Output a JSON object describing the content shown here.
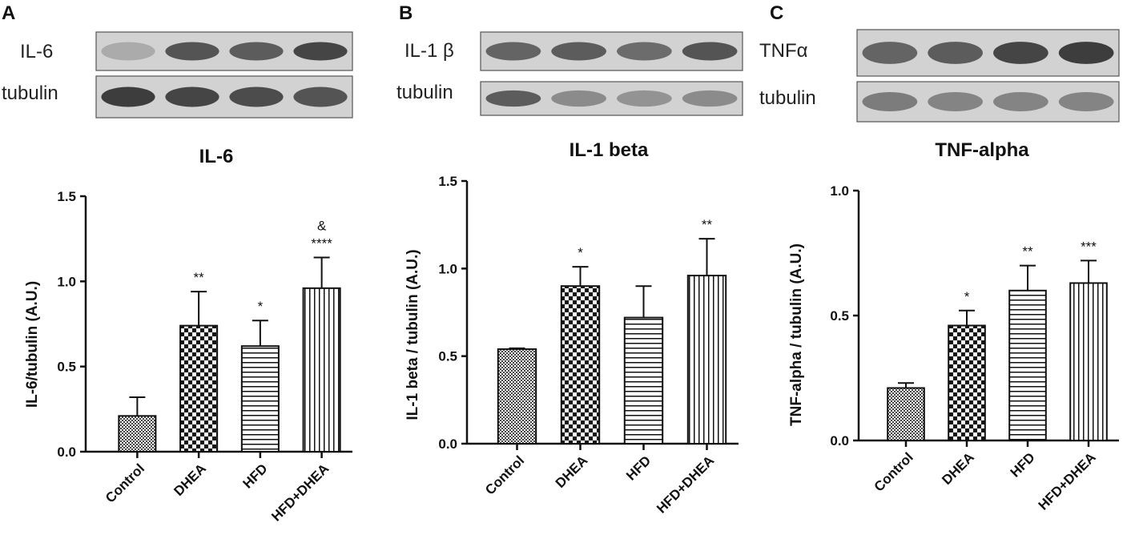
{
  "panels": [
    {
      "letter": "A",
      "blot_labels": [
        "IL-6",
        "tubulin"
      ],
      "band_darkness": [
        [
          0.25,
          0.8,
          0.75,
          0.9
        ],
        [
          0.95,
          0.9,
          0.85,
          0.8
        ]
      ]
    },
    {
      "letter": "B",
      "blot_labels": [
        "IL-1 β",
        "tubulin"
      ],
      "band_darkness": [
        [
          0.7,
          0.75,
          0.65,
          0.8
        ],
        [
          0.75,
          0.45,
          0.4,
          0.45
        ]
      ]
    },
    {
      "letter": "C",
      "blot_labels": [
        "TNFα",
        "tubulin"
      ],
      "band_darkness": [
        [
          0.7,
          0.75,
          0.9,
          0.95
        ],
        [
          0.55,
          0.5,
          0.5,
          0.5
        ]
      ]
    }
  ],
  "patterns": [
    "checker-fine",
    "checker-coarse",
    "horizontal-lines",
    "vertical-lines"
  ],
  "chart_data": [
    {
      "type": "bar",
      "title": "IL-6",
      "ylabel": "IL-6/tubulin (A.U.)",
      "categories": [
        "Control",
        "DHEA",
        "HFD",
        "HFD+DHEA"
      ],
      "values": [
        0.21,
        0.74,
        0.62,
        0.96
      ],
      "errors": [
        0.11,
        0.2,
        0.15,
        0.18
      ],
      "significance": [
        "",
        "**",
        "*",
        "&\n****"
      ],
      "ylim": [
        0,
        1.5
      ],
      "yticks": [
        "0.0",
        "0.5",
        "1.0",
        "1.5"
      ],
      "grid": false
    },
    {
      "type": "bar",
      "title": "IL-1 beta",
      "ylabel": "IL-1 beta / tubulin (A.U.)",
      "categories": [
        "Control",
        "DHEA",
        "HFD",
        "HFD+DHEA"
      ],
      "values": [
        0.54,
        0.9,
        0.72,
        0.96
      ],
      "errors": [
        0.005,
        0.11,
        0.18,
        0.21
      ],
      "significance": [
        "",
        "*",
        "",
        "**"
      ],
      "ylim": [
        0,
        1.5
      ],
      "yticks": [
        "0.0",
        "0.5",
        "1.0",
        "1.5"
      ],
      "grid": false
    },
    {
      "type": "bar",
      "title": "TNF-alpha",
      "ylabel": "TNF-alpha / tubulin (A.U.)",
      "categories": [
        "Control",
        "DHEA",
        "HFD",
        "HFD+DHEA"
      ],
      "values": [
        0.21,
        0.46,
        0.6,
        0.63
      ],
      "errors": [
        0.02,
        0.06,
        0.1,
        0.09
      ],
      "significance": [
        "",
        "*",
        "**",
        "***"
      ],
      "ylim": [
        0,
        1.0
      ],
      "yticks": [
        "0.0",
        "0.5",
        "1.0"
      ],
      "grid": false
    }
  ]
}
